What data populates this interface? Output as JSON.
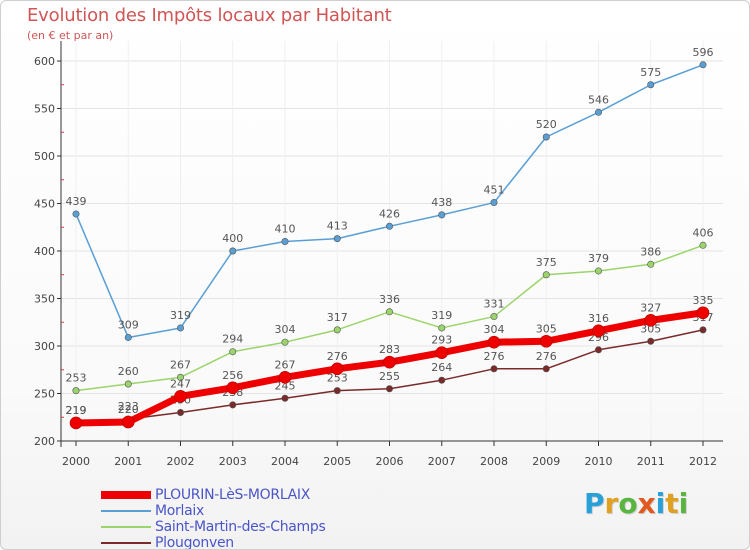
{
  "page": {
    "title": "Evolution des Impôts locaux par Habitant",
    "subtitle": "(en € et par an)"
  },
  "logo": {
    "text": "Proxiti",
    "letters": [
      {
        "ch": "P",
        "color": "#2aa0d8"
      },
      {
        "ch": "r",
        "color": "#e0a020"
      },
      {
        "ch": "o",
        "color": "#5ab540"
      },
      {
        "ch": "x",
        "color": "#e05a20"
      },
      {
        "ch": "i",
        "color": "#2aa0d8"
      },
      {
        "ch": "t",
        "color": "#e0a020"
      },
      {
        "ch": "i",
        "color": "#5ab540"
      }
    ]
  },
  "chart_data": {
    "type": "line",
    "title": "Evolution des Impôts locaux par Habitant",
    "subtitle": "(en € et par an)",
    "xlabel": "",
    "ylabel": "",
    "x": [
      "2000",
      "2001",
      "2002",
      "2003",
      "2004",
      "2005",
      "2006",
      "2007",
      "2008",
      "2009",
      "2010",
      "2011",
      "2012"
    ],
    "ylim": [
      200,
      620
    ],
    "yticks": [
      200,
      250,
      300,
      350,
      400,
      450,
      500,
      550,
      600
    ],
    "legend_placement": "bottom-left",
    "series": [
      {
        "name": "PLOURIN-LèS-MORLAIX",
        "color": "#ee0000",
        "values": [
          219,
          220,
          247,
          256,
          267,
          276,
          283,
          293,
          304,
          305,
          316,
          327,
          335
        ],
        "labels": [
          "219",
          "220",
          "247",
          "256",
          "267",
          "276",
          "283",
          "293",
          "304",
          "305",
          "316",
          "327",
          "335"
        ]
      },
      {
        "name": "Morlaix",
        "color": "#5a9fd4",
        "values": [
          439,
          309,
          319,
          400,
          410,
          413,
          426,
          438,
          451,
          520,
          546,
          575,
          596
        ],
        "labels": [
          "439",
          "309",
          "319",
          "400",
          "410",
          "413",
          "426",
          "438",
          "451",
          "520",
          "546",
          "575",
          "596"
        ]
      },
      {
        "name": "Saint-Martin-des-Champs",
        "color": "#9ad46a",
        "values": [
          253,
          260,
          267,
          294,
          304,
          317,
          336,
          319,
          331,
          375,
          379,
          386,
          406
        ],
        "labels": [
          "253",
          "260",
          "267",
          "294",
          "304",
          "317",
          "336",
          "319",
          "331",
          "375",
          "379",
          "386",
          "406"
        ]
      },
      {
        "name": "Plougonven",
        "color": "#7a2a2a",
        "values": [
          219,
          223,
          230,
          238,
          245,
          253,
          255,
          264,
          276,
          276,
          296,
          305,
          317
        ],
        "labels": [
          "219",
          "223",
          "230",
          "238",
          "245",
          "253",
          "255",
          "264",
          "276",
          "276",
          "296",
          "305",
          "317"
        ]
      }
    ]
  }
}
